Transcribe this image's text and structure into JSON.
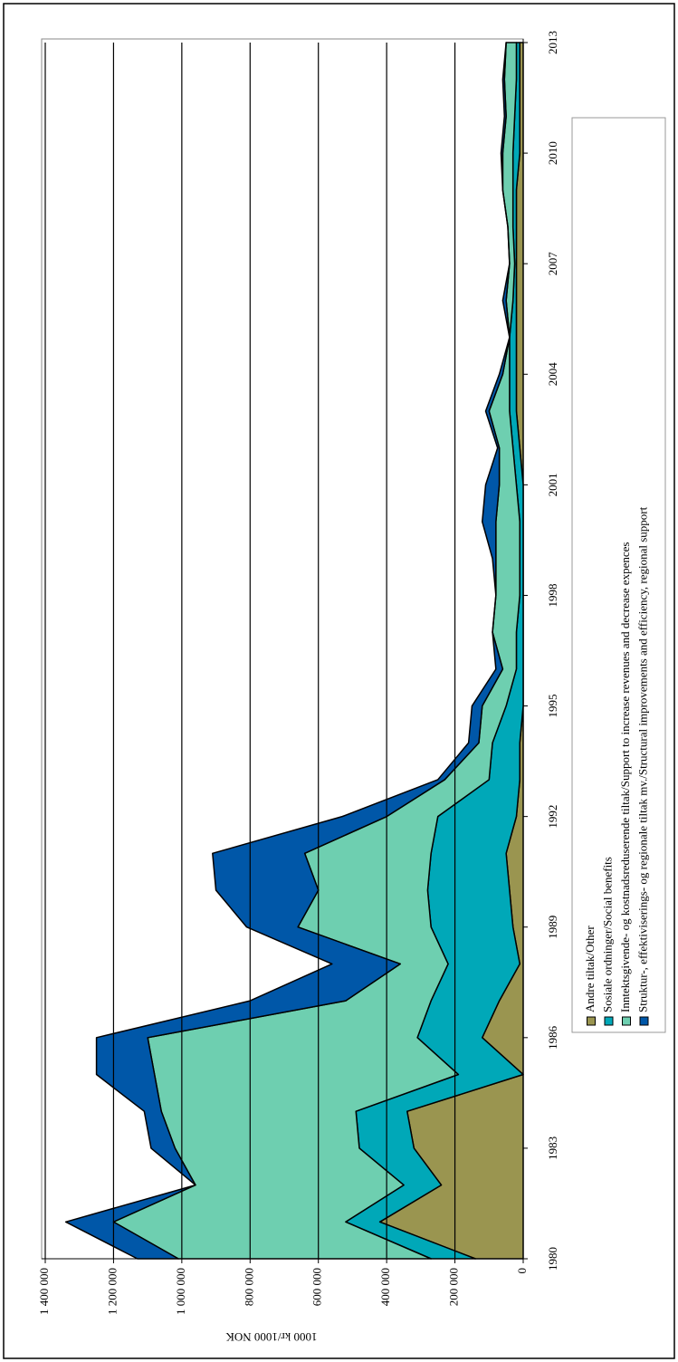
{
  "chart_data": {
    "type": "stacked-area",
    "y_label": "1000 kr/1000 NOK",
    "x": [
      1980,
      1981,
      1982,
      1983,
      1984,
      1985,
      1986,
      1987,
      1988,
      1989,
      1990,
      1991,
      1992,
      1993,
      1994,
      1995,
      1996,
      1997,
      1998,
      1999,
      2000,
      2001,
      2002,
      2003,
      2004,
      2005,
      2006,
      2007,
      2008,
      2009,
      2010,
      2011,
      2012,
      2013
    ],
    "xlim": [
      1980,
      2013
    ],
    "xticks": [
      1980,
      1983,
      1986,
      1989,
      1992,
      1995,
      1998,
      2001,
      2004,
      2007,
      2010,
      2013
    ],
    "ylim": [
      0,
      1400000
    ],
    "yticks": [
      0,
      {
        "value": 200000,
        "label": "200 000"
      },
      {
        "value": 400000,
        "label": "400 000"
      },
      {
        "value": 600000,
        "label": "600 000"
      },
      {
        "value": 800000,
        "label": "800 000"
      },
      {
        "value": 1000000,
        "label": "1 000 000"
      },
      {
        "value": 1200000,
        "label": "1 200 000"
      },
      {
        "value": 1400000,
        "label": "1 400 000"
      }
    ],
    "grid": true,
    "series": [
      {
        "name": "Andre tiltak/Other",
        "color": "#9a9550",
        "values": [
          140000,
          420000,
          240000,
          320000,
          340000,
          0,
          120000,
          70000,
          10000,
          30000,
          40000,
          50000,
          20000,
          10000,
          10000,
          0,
          0,
          0,
          0,
          0,
          0,
          0,
          10000,
          20000,
          20000,
          20000,
          20000,
          20000,
          20000,
          20000,
          10000,
          10000,
          10000,
          10000
        ]
      },
      {
        "name": "Sosiale ordninger/Social benefits",
        "color": "#00a8b8",
        "values": [
          130000,
          100000,
          110000,
          160000,
          150000,
          190000,
          190000,
          200000,
          210000,
          240000,
          240000,
          220000,
          230000,
          90000,
          80000,
          50000,
          20000,
          20000,
          10000,
          10000,
          10000,
          20000,
          20000,
          20000,
          20000,
          20000,
          10000,
          5000,
          10000,
          10000,
          20000,
          15000,
          10000,
          10000
        ]
      },
      {
        "name": "Inntektsgivende- og kostnadsreduserende tiltak/Support to increase revenues and decrease expences",
        "color": "#6ecfb0",
        "values": [
          740000,
          680000,
          610000,
          540000,
          570000,
          890000,
          790000,
          250000,
          140000,
          390000,
          320000,
          370000,
          150000,
          130000,
          40000,
          70000,
          40000,
          70000,
          70000,
          70000,
          70000,
          50000,
          40000,
          60000,
          20000,
          0,
          20000,
          15000,
          15000,
          30000,
          30000,
          25000,
          35000,
          30000
        ]
      },
      {
        "name": "Struktur-, effektiviserings- og regionale tiltak mv./Structural improvements and efficiency, regional support",
        "color": "#0057a8",
        "values": [
          120000,
          140000,
          0,
          70000,
          50000,
          170000,
          150000,
          280000,
          200000,
          150000,
          300000,
          270000,
          130000,
          20000,
          30000,
          30000,
          20000,
          0,
          0,
          10000,
          40000,
          40000,
          5000,
          10000,
          10000,
          0,
          10000,
          0,
          0,
          0,
          5000,
          5000,
          5000,
          0
        ]
      }
    ]
  }
}
